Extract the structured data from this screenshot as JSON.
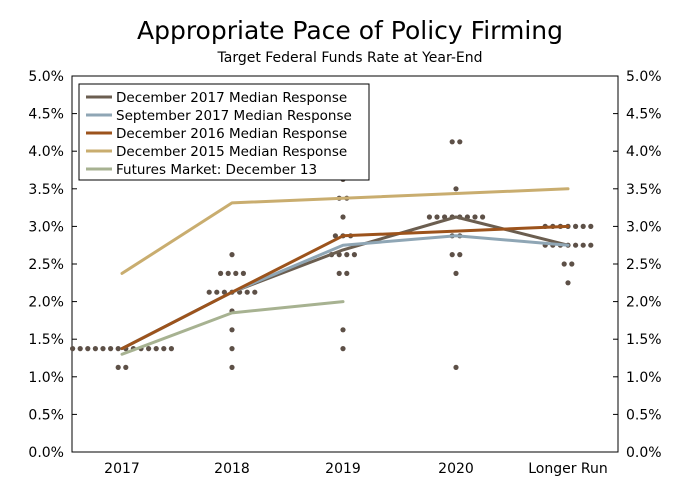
{
  "chart_data": {
    "type": "line",
    "title": "Appropriate Pace of Policy Firming",
    "subtitle": "Target Federal Funds Rate at Year-End",
    "xlabel": "",
    "ylabel": "",
    "categories": [
      "2017",
      "2018",
      "2019",
      "2020",
      "Longer Run"
    ],
    "y_ticks": [
      "0.0%",
      "0.5%",
      "1.0%",
      "1.5%",
      "2.0%",
      "2.5%",
      "3.0%",
      "3.5%",
      "4.0%",
      "4.5%",
      "5.0%"
    ],
    "ylim": [
      0,
      5
    ],
    "legend_position": "top-left",
    "series": [
      {
        "name": "December 2017 Median Response",
        "color": "#6b5e50",
        "values": [
          1.375,
          2.125,
          2.6875,
          3.125,
          2.75
        ]
      },
      {
        "name": "September 2017 Median Response",
        "color": "#8fa6b5",
        "values": [
          1.375,
          2.125,
          2.75,
          2.875,
          2.75
        ]
      },
      {
        "name": "December 2016 Median Response",
        "color": "#9c531c",
        "values": [
          1.375,
          2.125,
          2.875,
          2.9375,
          3.0
        ]
      },
      {
        "name": "December 2015 Median Response",
        "color": "#c9ad6f",
        "values": [
          2.375,
          3.3125,
          3.375,
          3.4375,
          3.5
        ]
      },
      {
        "name": "Futures Market: December 13",
        "color": "#a7b291",
        "values": [
          1.3,
          1.85,
          2.0,
          null,
          null
        ]
      }
    ],
    "dot_plot": {
      "color": "#5d5047",
      "points": [
        {
          "x": "2017",
          "values": [
            1.125,
            1.125,
            1.375,
            1.375,
            1.375,
            1.375,
            1.375,
            1.375,
            1.375,
            1.375,
            1.375,
            1.375,
            1.375,
            1.375,
            1.375,
            1.375
          ]
        },
        {
          "x": "2018",
          "values": [
            1.125,
            1.375,
            1.625,
            1.875,
            2.125,
            2.125,
            2.125,
            2.125,
            2.125,
            2.125,
            2.125,
            2.375,
            2.375,
            2.375,
            2.375,
            2.625
          ]
        },
        {
          "x": "2019",
          "values": [
            1.375,
            1.625,
            2.375,
            2.375,
            2.625,
            2.625,
            2.625,
            2.625,
            2.875,
            2.875,
            2.875,
            3.125,
            3.375,
            3.375,
            3.625
          ]
        },
        {
          "x": "2020",
          "values": [
            1.125,
            2.375,
            2.625,
            2.625,
            2.875,
            2.875,
            3.125,
            3.125,
            3.125,
            3.125,
            3.125,
            3.125,
            3.125,
            3.125,
            3.5,
            4.125,
            4.125
          ]
        },
        {
          "x": "Longer Run",
          "values": [
            2.25,
            2.5,
            2.5,
            2.75,
            2.75,
            2.75,
            2.75,
            2.75,
            2.75,
            2.75,
            3.0,
            3.0,
            3.0,
            3.0,
            3.0,
            3.0,
            3.0
          ]
        }
      ]
    }
  }
}
